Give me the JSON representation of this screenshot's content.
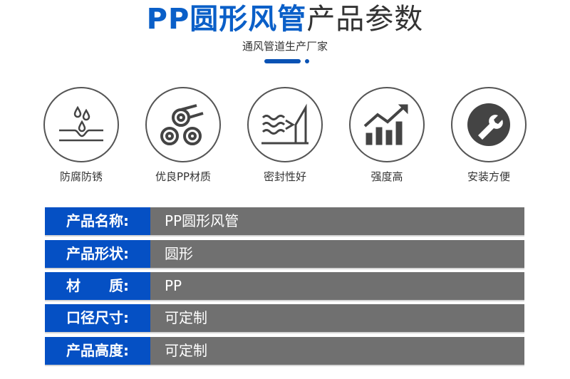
{
  "header": {
    "title_blue": "PP圆形风管",
    "title_dark": "产品参数",
    "subtitle": "通风管道生产厂家"
  },
  "colors": {
    "accent": "#0550c4",
    "value_bg": "#707070"
  },
  "features": [
    {
      "icon": "water-drop-icon",
      "label": "防腐防锈"
    },
    {
      "icon": "pipes-icon",
      "label": "优良PP材质"
    },
    {
      "icon": "seal-wave-icon",
      "label": "密封性好"
    },
    {
      "icon": "bar-chart-growth-icon",
      "label": "强度高"
    },
    {
      "icon": "wrench-icon",
      "label": "安装方便"
    }
  ],
  "specs": [
    {
      "key": "产品名称:",
      "value": "PP圆形风管"
    },
    {
      "key": "产品形状:",
      "value": "圆形"
    },
    {
      "key": "材　　质:",
      "value": "PP"
    },
    {
      "key": "口径尺寸:",
      "value": "可定制"
    },
    {
      "key": "产品高度:",
      "value": "可定制"
    }
  ]
}
